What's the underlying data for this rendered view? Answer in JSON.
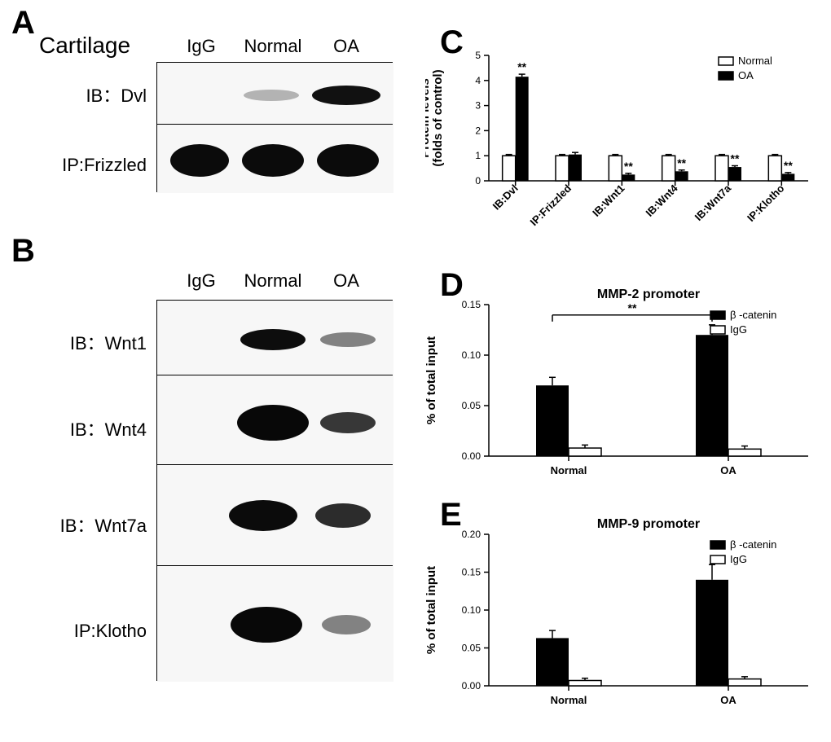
{
  "panelA": {
    "label": "A",
    "title": "Cartilage",
    "cols": [
      "IgG",
      "Normal",
      "OA"
    ],
    "rows": [
      {
        "label": "IB：Dvl",
        "bands": [
          0,
          0.25,
          1.0
        ],
        "shape": "thin"
      },
      {
        "label": "IP:Frizzled",
        "bands": [
          1.0,
          1.0,
          1.0
        ],
        "shape": "thick"
      }
    ]
  },
  "panelB": {
    "label": "B",
    "cols": [
      "IgG",
      "Normal",
      "OA"
    ],
    "rows": [
      {
        "label": "IB：Wnt1",
        "bands": [
          0,
          1.0,
          0.28
        ],
        "shape": "thin"
      },
      {
        "label": "IB：Wnt4",
        "bands": [
          0,
          1.0,
          0.35
        ],
        "shape": "thick"
      },
      {
        "label": "IB：Wnt7a",
        "bands": [
          0,
          1.0,
          0.5
        ],
        "shape": "med"
      },
      {
        "label": "IP:Klotho",
        "bands": [
          0,
          1.0,
          0.25
        ],
        "shape": "thick"
      }
    ]
  },
  "panelC": {
    "label": "C",
    "ylabel": "Protein levels\n(folds of control)",
    "ylim": [
      0,
      5
    ],
    "yticks": [
      0,
      1,
      2,
      3,
      4,
      5
    ],
    "categories": [
      "IB:Dvl",
      "IP:Frizzled",
      "IB:Wnt1",
      "IB:Wnt4",
      "IB:Wnt7a",
      "IP:Klotho"
    ],
    "series": [
      {
        "name": "Normal",
        "color": "#ffffff",
        "values": [
          1.0,
          1.0,
          1.0,
          1.0,
          1.0,
          1.0
        ],
        "err": [
          0.05,
          0.05,
          0.05,
          0.05,
          0.05,
          0.05
        ]
      },
      {
        "name": "OA",
        "color": "#000000",
        "values": [
          4.15,
          1.05,
          0.25,
          0.38,
          0.55,
          0.28
        ],
        "err": [
          0.1,
          0.08,
          0.05,
          0.05,
          0.05,
          0.05
        ]
      }
    ],
    "sig": [
      "**",
      "",
      "**",
      "**",
      "**",
      "**"
    ]
  },
  "panelD": {
    "label": "D",
    "title": "MMP-2 promoter",
    "ylabel": "% of total input",
    "ylim": [
      0,
      0.15
    ],
    "yticks": [
      0.0,
      0.05,
      0.1,
      0.15
    ],
    "categories": [
      "Normal",
      "OA"
    ],
    "series": [
      {
        "name": "β -catenin",
        "color": "#000000",
        "values": [
          0.07,
          0.12
        ],
        "err": [
          0.008,
          0.01
        ]
      },
      {
        "name": "IgG",
        "color": "#ffffff",
        "values": [
          0.008,
          0.007
        ],
        "err": [
          0.003,
          0.003
        ]
      }
    ],
    "sigBracket": {
      "text": "**"
    }
  },
  "panelE": {
    "label": "E",
    "title": "MMP-9 promoter",
    "ylabel": "% of total input",
    "ylim": [
      0,
      0.2
    ],
    "yticks": [
      0.0,
      0.05,
      0.1,
      0.15,
      0.2
    ],
    "categories": [
      "Normal",
      "OA"
    ],
    "series": [
      {
        "name": "β -catenin",
        "color": "#000000",
        "values": [
          0.063,
          0.14
        ],
        "err": [
          0.01,
          0.02
        ]
      },
      {
        "name": "IgG",
        "color": "#ffffff",
        "values": [
          0.007,
          0.009
        ],
        "err": [
          0.003,
          0.003
        ]
      }
    ]
  },
  "style": {
    "blotWidth": 290,
    "blotHeight": 70,
    "bandColor": "#1a1a1a",
    "bandBg": "#f5f5f5"
  }
}
